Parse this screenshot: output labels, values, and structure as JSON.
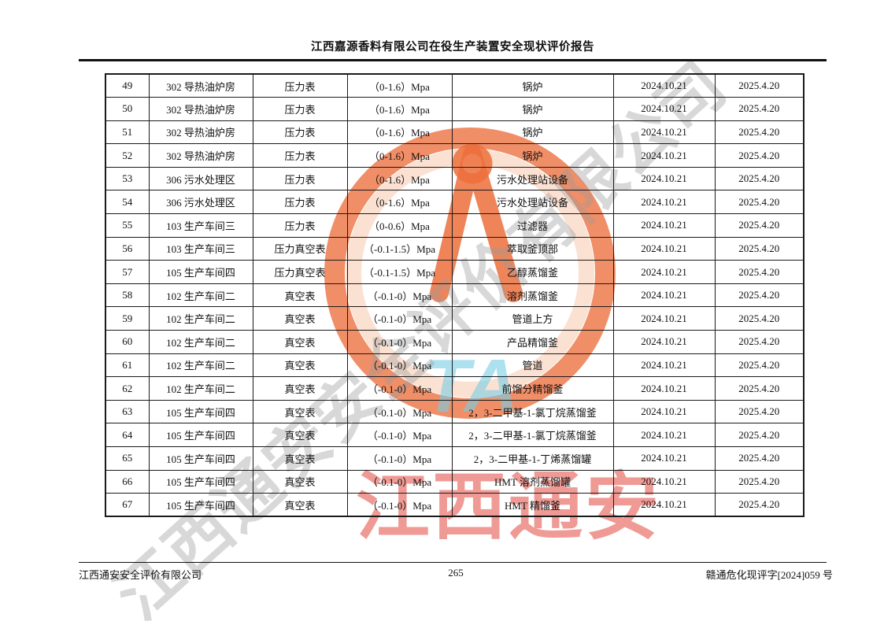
{
  "header": {
    "title": "江西嘉源香料有限公司在役生产装置安全现状评价报告"
  },
  "table": {
    "rows": [
      [
        "49",
        "302 导热油炉房",
        "压力表",
        "（0-1.6）Mpa",
        "锅炉",
        "2024.10.21",
        "2025.4.20"
      ],
      [
        "50",
        "302 导热油炉房",
        "压力表",
        "（0-1.6）Mpa",
        "锅炉",
        "2024.10.21",
        "2025.4.20"
      ],
      [
        "51",
        "302 导热油炉房",
        "压力表",
        "（0-1.6）Mpa",
        "锅炉",
        "2024.10.21",
        "2025.4.20"
      ],
      [
        "52",
        "302 导热油炉房",
        "压力表",
        "（0-1.6）Mpa",
        "锅炉",
        "2024.10.21",
        "2025.4.20"
      ],
      [
        "53",
        "306 污水处理区",
        "压力表",
        "（0-1.6）Mpa",
        "污水处理站设备",
        "2024.10.21",
        "2025.4.20"
      ],
      [
        "54",
        "306 污水处理区",
        "压力表",
        "（0-1.6）Mpa",
        "污水处理站设备",
        "2024.10.21",
        "2025.4.20"
      ],
      [
        "55",
        "103 生产车间三",
        "压力表",
        "（0-0.6）Mpa",
        "过滤器",
        "2024.10.21",
        "2025.4.20"
      ],
      [
        "56",
        "103 生产车间三",
        "压力真空表",
        "（-0.1-1.5）Mpa",
        "萃取釜顶部",
        "2024.10.21",
        "2025.4.20"
      ],
      [
        "57",
        "105 生产车间四",
        "压力真空表",
        "（-0.1-1.5）Mpa",
        "乙醇蒸馏釜",
        "2024.10.21",
        "2025.4.20"
      ],
      [
        "58",
        "102 生产车间二",
        "真空表",
        "（-0.1-0）Mpa",
        "溶剂蒸馏釜",
        "2024.10.21",
        "2025.4.20"
      ],
      [
        "59",
        "102 生产车间二",
        "真空表",
        "（-0.1-0）Mpa",
        "管道上方",
        "2024.10.21",
        "2025.4.20"
      ],
      [
        "60",
        "102 生产车间二",
        "真空表",
        "（-0.1-0）Mpa",
        "产品精馏釜",
        "2024.10.21",
        "2025.4.20"
      ],
      [
        "61",
        "102 生产车间二",
        "真空表",
        "（-0.1-0）Mpa",
        "管道",
        "2024.10.21",
        "2025.4.20"
      ],
      [
        "62",
        "102 生产车间二",
        "真空表",
        "（-0.1-0）Mpa",
        "前馏分精馏釜",
        "2024.10.21",
        "2025.4.20"
      ],
      [
        "63",
        "105 生产车间四",
        "真空表",
        "（-0.1-0）Mpa",
        "2，3-二甲基-1-氯丁烷蒸馏釜",
        "2024.10.21",
        "2025.4.20"
      ],
      [
        "64",
        "105 生产车间四",
        "真空表",
        "（-0.1-0）Mpa",
        "2，3-二甲基-1-氯丁烷蒸馏釜",
        "2024.10.21",
        "2025.4.20"
      ],
      [
        "65",
        "105 生产车间四",
        "真空表",
        "（-0.1-0）Mpa",
        "2，3-二甲基-1-丁烯蒸馏罐",
        "2024.10.21",
        "2025.4.20"
      ],
      [
        "66",
        "105 生产车间四",
        "真空表",
        "（-0.1-0）Mpa",
        "HMT 溶剂蒸馏罐",
        "2024.10.21",
        "2025.4.20"
      ],
      [
        "67",
        "105 生产车间四",
        "真空表",
        "（-0.1-0）Mpa",
        "HMT 精馏釜",
        "2024.10.21",
        "2025.4.20"
      ]
    ]
  },
  "footer": {
    "company": "江西通安安全评价有限公司",
    "page_number": "265",
    "doc_number": "赣通危化现评字[2024]059 号"
  },
  "watermark": {
    "diagonal_text": "江西通安安全评价有限公司",
    "red_text": "江西通安",
    "logo_letters": "TA",
    "colors": {
      "ring_orange": "#EC6E3C",
      "ring_inner": "#F8CDB4",
      "logo_blue": "#78CDE4",
      "red_text": "#E2493F",
      "grey_text": "#9B9B9B"
    }
  }
}
